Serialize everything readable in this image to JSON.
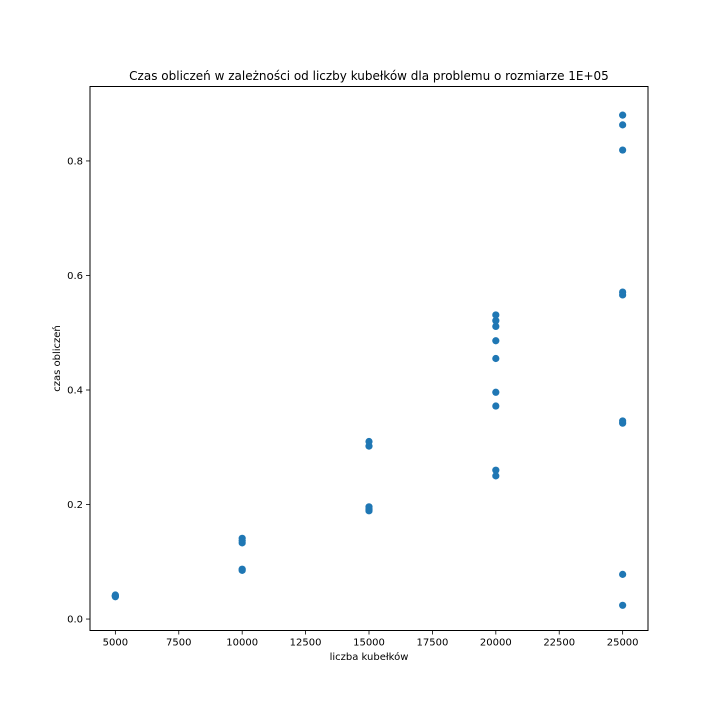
{
  "chart_data": {
    "type": "scatter",
    "title": "Czas obliczeń w zależności od liczby kubełków dla problemu o rozmiarze 1E+05",
    "xlabel": "liczba kubełków",
    "ylabel": "czas obliczeń",
    "xlim": [
      4000,
      26000
    ],
    "ylim": [
      -0.02,
      0.93
    ],
    "x_ticks": [
      5000,
      7500,
      10000,
      12500,
      15000,
      17500,
      20000,
      22500,
      25000
    ],
    "y_ticks": [
      0.0,
      0.2,
      0.4,
      0.6,
      0.8
    ],
    "x_tick_labels": [
      "5000",
      "7500",
      "10000",
      "12500",
      "15000",
      "17500",
      "20000",
      "22500",
      "25000"
    ],
    "y_tick_labels": [
      "0.0",
      "0.2",
      "0.4",
      "0.6",
      "0.8"
    ],
    "grid": false,
    "marker_color": "#1f77b4",
    "points": [
      {
        "x": 5000,
        "y": 0.039
      },
      {
        "x": 5000,
        "y": 0.04
      },
      {
        "x": 5000,
        "y": 0.041
      },
      {
        "x": 5000,
        "y": 0.042
      },
      {
        "x": 10000,
        "y": 0.085
      },
      {
        "x": 10000,
        "y": 0.087
      },
      {
        "x": 10000,
        "y": 0.133
      },
      {
        "x": 10000,
        "y": 0.137
      },
      {
        "x": 10000,
        "y": 0.141
      },
      {
        "x": 15000,
        "y": 0.189
      },
      {
        "x": 15000,
        "y": 0.192
      },
      {
        "x": 15000,
        "y": 0.196
      },
      {
        "x": 15000,
        "y": 0.302
      },
      {
        "x": 15000,
        "y": 0.31
      },
      {
        "x": 20000,
        "y": 0.25
      },
      {
        "x": 20000,
        "y": 0.26
      },
      {
        "x": 20000,
        "y": 0.372
      },
      {
        "x": 20000,
        "y": 0.396
      },
      {
        "x": 20000,
        "y": 0.455
      },
      {
        "x": 20000,
        "y": 0.486
      },
      {
        "x": 20000,
        "y": 0.511
      },
      {
        "x": 20000,
        "y": 0.521
      },
      {
        "x": 20000,
        "y": 0.531
      },
      {
        "x": 25000,
        "y": 0.024
      },
      {
        "x": 25000,
        "y": 0.078
      },
      {
        "x": 25000,
        "y": 0.342
      },
      {
        "x": 25000,
        "y": 0.346
      },
      {
        "x": 25000,
        "y": 0.566
      },
      {
        "x": 25000,
        "y": 0.571
      },
      {
        "x": 25000,
        "y": 0.819
      },
      {
        "x": 25000,
        "y": 0.863
      },
      {
        "x": 25000,
        "y": 0.88
      }
    ]
  }
}
